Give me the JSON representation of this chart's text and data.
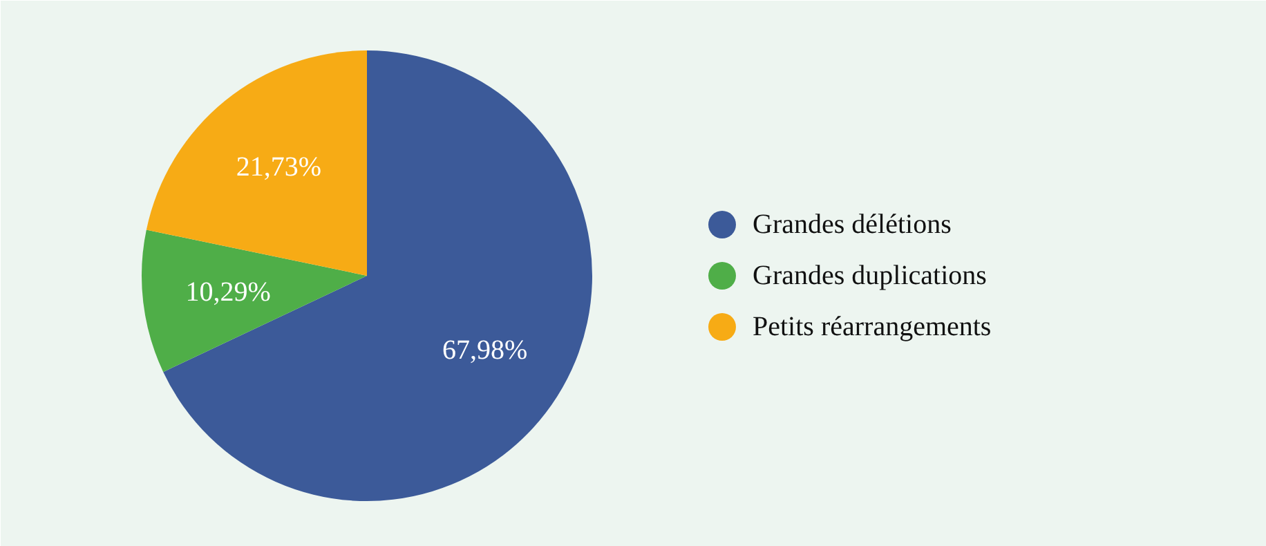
{
  "chart_data": {
    "type": "pie",
    "categories": [
      "Grandes délétions",
      "Grandes duplications",
      "Petits réarrangements"
    ],
    "values": [
      67.98,
      10.29,
      21.73
    ],
    "value_labels": [
      "67,98%",
      "10,29%",
      "21,73%"
    ],
    "colors": [
      "#3c5a99",
      "#4fae48",
      "#f7ab15"
    ],
    "legend": "right"
  }
}
